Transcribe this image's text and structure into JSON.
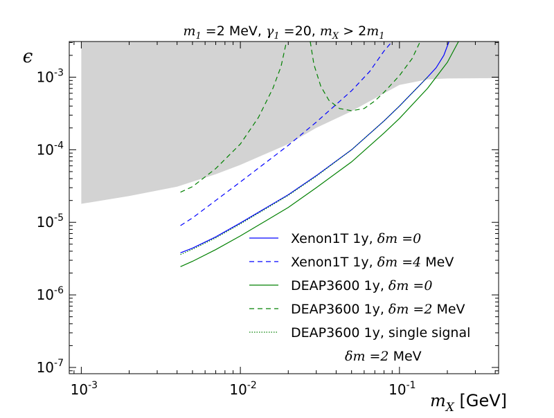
{
  "chart_data": {
    "type": "line",
    "title_parts": {
      "m1": "m",
      "m1_sub": "1",
      "m1_eq": " =2 MeV, ",
      "gamma": "γ",
      "gamma_sub": "1",
      "gamma_eq": " =20, ",
      "mx": "m",
      "mx_sub": "X",
      "mx_rel": " > 2",
      "m1b": "m",
      "m1b_sub": "1"
    },
    "ylabel": "ϵ",
    "xlabel_math": "m",
    "xlabel_sub": "X",
    "xlabel_unit": "[GeV]",
    "xscale": "log",
    "yscale": "log",
    "xlim": [
      0.00084,
      0.42
    ],
    "ylim": [
      8.2e-08,
      0.0031
    ],
    "x_ticks": [
      {
        "value": 0.001,
        "base": "10",
        "exp": "-3"
      },
      {
        "value": 0.01,
        "base": "10",
        "exp": "-2"
      },
      {
        "value": 0.1,
        "base": "10",
        "exp": "-1"
      }
    ],
    "y_ticks": [
      {
        "value": 1e-07,
        "base": "10",
        "exp": "-7"
      },
      {
        "value": 1e-06,
        "base": "10",
        "exp": "-6"
      },
      {
        "value": 1e-05,
        "base": "10",
        "exp": "-5"
      },
      {
        "value": 0.0001,
        "base": "10",
        "exp": "-4"
      },
      {
        "value": 0.001,
        "base": "10",
        "exp": "-3"
      }
    ],
    "excluded_region": {
      "color": "#d3d3d3",
      "lower_boundary": [
        [
          0.001,
          1.8e-05
        ],
        [
          0.002,
          2.3e-05
        ],
        [
          0.004,
          3.1e-05
        ],
        [
          0.007,
          4.6e-05
        ],
        [
          0.01,
          6.2e-05
        ],
        [
          0.02,
          0.00012
        ],
        [
          0.03,
          0.0002
        ],
        [
          0.05,
          0.00034
        ],
        [
          0.08,
          0.0006
        ],
        [
          0.1,
          0.00078
        ],
        [
          0.15,
          0.00093
        ],
        [
          0.2,
          0.00096
        ],
        [
          0.4,
          0.00097
        ]
      ]
    },
    "series": [
      {
        "name": "Xenon1T 1y, ",
        "math": "δm",
        "math_tail": " =0",
        "unit": "",
        "color": "#0000ff",
        "dash": "solid",
        "points": [
          [
            0.0042,
            3.8e-06
          ],
          [
            0.005,
            4.4e-06
          ],
          [
            0.007,
            6.3e-06
          ],
          [
            0.01,
            9.8e-06
          ],
          [
            0.02,
            2.4e-05
          ],
          [
            0.03,
            4.4e-05
          ],
          [
            0.05,
            0.0001
          ],
          [
            0.08,
            0.00025
          ],
          [
            0.1,
            0.0004
          ],
          [
            0.15,
            0.001
          ],
          [
            0.17,
            0.00135
          ],
          [
            0.19,
            0.002
          ],
          [
            0.205,
            0.0031
          ]
        ]
      },
      {
        "name": "Xenon1T 1y, ",
        "math": "δm",
        "math_tail": " =4",
        "unit": " MeV",
        "color": "#0000ff",
        "dash": "dashed",
        "points": [
          [
            0.0042,
            9e-06
          ],
          [
            0.005,
            1.15e-05
          ],
          [
            0.007,
            2e-05
          ],
          [
            0.01,
            3.6e-05
          ],
          [
            0.02,
            0.000115
          ],
          [
            0.03,
            0.00024
          ],
          [
            0.05,
            0.00065
          ],
          [
            0.065,
            0.0012
          ],
          [
            0.08,
            0.0023
          ],
          [
            0.09,
            0.0031
          ]
        ]
      },
      {
        "name": "DEAP3600 1y, ",
        "math": "δm",
        "math_tail": " =0",
        "unit": "",
        "color": "#008000",
        "dash": "solid",
        "points": [
          [
            0.0042,
            2.45e-06
          ],
          [
            0.005,
            2.9e-06
          ],
          [
            0.007,
            4.2e-06
          ],
          [
            0.01,
            6.5e-06
          ],
          [
            0.02,
            1.6e-05
          ],
          [
            0.03,
            3e-05
          ],
          [
            0.05,
            6.8e-05
          ],
          [
            0.08,
            0.00017
          ],
          [
            0.1,
            0.00027
          ],
          [
            0.15,
            0.0007
          ],
          [
            0.2,
            0.0016
          ],
          [
            0.235,
            0.0031
          ]
        ]
      },
      {
        "name": "DEAP3600 1y, ",
        "math": "δm",
        "math_tail": " =2",
        "unit": " MeV",
        "color": "#008000",
        "dash": "dashed",
        "points": [
          [
            0.0042,
            2.6e-05
          ],
          [
            0.005,
            3.1e-05
          ],
          [
            0.007,
            5.5e-05
          ],
          [
            0.01,
            0.00012
          ],
          [
            0.013,
            0.00028
          ],
          [
            0.016,
            0.0007
          ],
          [
            0.018,
            0.0014
          ],
          [
            0.0195,
            0.0031
          ]
        ]
      },
      {
        "name": "DEAP3600 1y, ",
        "math": "δm",
        "math_tail": " =2",
        "unit": " MeV",
        "color": "#008000",
        "dash": "dashed",
        "legend": false,
        "points": [
          [
            0.0275,
            0.0031
          ],
          [
            0.029,
            0.0015
          ],
          [
            0.032,
            0.00075
          ],
          [
            0.036,
            0.00048
          ],
          [
            0.042,
            0.00037
          ],
          [
            0.05,
            0.000345
          ],
          [
            0.06,
            0.00037
          ],
          [
            0.07,
            0.00047
          ],
          [
            0.08,
            0.00062
          ],
          [
            0.1,
            0.00105
          ],
          [
            0.12,
            0.0018
          ],
          [
            0.135,
            0.0031
          ]
        ]
      },
      {
        "name": "DEAP3600 1y, single signal",
        "math": "δm",
        "math_tail": " =2",
        "unit": " MeV",
        "color": "#008000",
        "dash": "dotted",
        "points": [
          [
            0.0042,
            3.6e-06
          ],
          [
            0.005,
            4.25e-06
          ],
          [
            0.007,
            6.1e-06
          ],
          [
            0.01,
            9.5e-06
          ],
          [
            0.02,
            2.35e-05
          ],
          [
            0.03,
            4.3e-05
          ],
          [
            0.05,
            0.0001
          ],
          [
            0.08,
            0.00025
          ],
          [
            0.1,
            0.0004
          ],
          [
            0.15,
            0.001
          ]
        ]
      }
    ]
  }
}
